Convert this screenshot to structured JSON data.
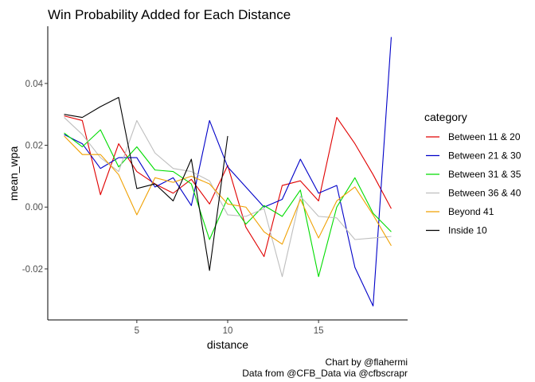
{
  "chart_data": {
    "type": "line",
    "title": "Win Probability Added for Each Distance",
    "xlabel": "distance",
    "ylabel": "mean_wpa",
    "xlim": [
      0.1,
      19.9
    ],
    "ylim": [
      -0.0365,
      0.0585
    ],
    "x_ticks": [
      5,
      10,
      15
    ],
    "y_ticks": [
      -0.02,
      0.0,
      0.02,
      0.04
    ],
    "x_tick_labels": [
      "5",
      "10",
      "15"
    ],
    "y_tick_labels": [
      "-0.02",
      "0.00",
      "0.02",
      "0.04"
    ],
    "grid": false,
    "legend_position": "right",
    "legend_title": "category",
    "caption_lines": [
      "Chart by @flahermi",
      "Data from @CFB_Data via @cfbscrapr"
    ],
    "series": [
      {
        "name": "Between 11 & 20",
        "color": "#e00000",
        "x": [
          1,
          2,
          3,
          4,
          5,
          6,
          7,
          8,
          9,
          10,
          11,
          12,
          13,
          14,
          15,
          16,
          17,
          18,
          19
        ],
        "y": [
          0.0295,
          0.028,
          0.004,
          0.0205,
          0.0115,
          0.0075,
          0.0045,
          0.009,
          0.001,
          0.0135,
          -0.0065,
          -0.016,
          0.007,
          0.0085,
          0.002,
          0.029,
          0.0205,
          0.0105,
          -0.0005
        ]
      },
      {
        "name": "Between 21 & 30",
        "color": "#0000c8",
        "x": [
          1,
          2,
          3,
          4,
          5,
          6,
          7,
          8,
          9,
          10,
          11,
          12,
          13,
          14,
          15,
          16,
          17,
          18,
          19
        ],
        "y": [
          0.0235,
          0.0205,
          0.0125,
          0.016,
          0.016,
          0.0065,
          0.0095,
          0.0005,
          0.028,
          0.013,
          0.0065,
          0.0,
          0.0025,
          0.0155,
          0.0045,
          0.007,
          -0.0195,
          -0.032,
          0.055
        ]
      },
      {
        "name": "Between 31 & 35",
        "color": "#00dc00",
        "x": [
          1,
          2,
          3,
          4,
          5,
          6,
          7,
          8,
          9,
          10,
          11,
          12,
          13,
          14,
          15,
          16,
          17,
          18,
          19
        ],
        "y": [
          0.024,
          0.0195,
          0.025,
          0.013,
          0.0195,
          0.012,
          0.0115,
          0.0075,
          -0.0105,
          0.003,
          -0.0055,
          0.0005,
          -0.003,
          0.0055,
          -0.0225,
          0.0,
          0.0095,
          -0.002,
          -0.008
        ]
      },
      {
        "name": "Between 36 & 40",
        "color": "#bebebe",
        "x": [
          1,
          2,
          3,
          4,
          5,
          6,
          7,
          8,
          9,
          10,
          11,
          12,
          13,
          14,
          15,
          16,
          17,
          18,
          19
        ],
        "y": [
          0.029,
          0.0235,
          0.016,
          0.0115,
          0.028,
          0.0175,
          0.0125,
          0.0115,
          0.0085,
          -0.0025,
          -0.003,
          -0.0005,
          -0.0225,
          0.0035,
          -0.003,
          -0.0035,
          -0.0105,
          -0.01,
          -0.0095
        ]
      },
      {
        "name": "Beyond 41",
        "color": "#f0a000",
        "x": [
          1,
          2,
          3,
          4,
          5,
          6,
          7,
          8,
          9,
          10,
          11,
          12,
          13,
          14,
          15,
          16,
          17,
          18,
          19
        ],
        "y": [
          0.023,
          0.017,
          0.017,
          0.0105,
          -0.0025,
          0.0095,
          0.008,
          0.01,
          0.0075,
          0.001,
          0.0,
          -0.008,
          -0.012,
          0.0025,
          -0.01,
          0.002,
          0.0065,
          -0.0025,
          -0.0125
        ]
      },
      {
        "name": "Inside 10",
        "color": "#000000",
        "x": [
          1,
          2,
          3,
          4,
          5,
          6,
          7,
          8,
          9,
          10
        ],
        "y": [
          0.03,
          0.029,
          0.0325,
          0.0355,
          0.006,
          0.0075,
          0.002,
          0.0155,
          -0.0205,
          0.023
        ]
      }
    ]
  }
}
